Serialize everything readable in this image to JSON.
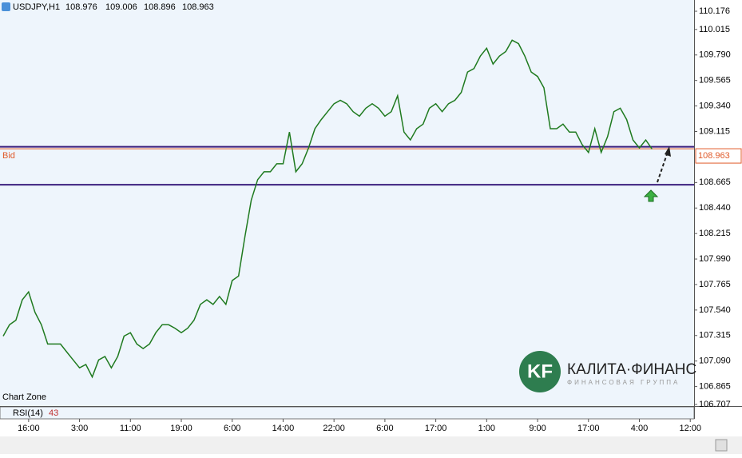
{
  "chart_data": {
    "type": "line",
    "header": {
      "symbol": "USDJPY,H1",
      "open": 108.976,
      "high": 109.006,
      "low": 108.896,
      "close": 108.963
    },
    "watermark": "Chart Zone",
    "series": [
      {
        "name": "USDJPY,H1",
        "color": "#1f7a1f",
        "values": [
          107.31,
          107.41,
          107.45,
          107.63,
          107.7,
          107.52,
          107.41,
          107.24,
          107.24,
          107.24,
          107.17,
          107.1,
          107.03,
          107.06,
          106.95,
          107.1,
          107.13,
          107.03,
          107.13,
          107.31,
          107.34,
          107.24,
          107.2,
          107.24,
          107.34,
          107.41,
          107.41,
          107.38,
          107.34,
          107.38,
          107.45,
          107.59,
          107.63,
          107.59,
          107.66,
          107.59,
          107.8,
          107.84,
          108.19,
          108.51,
          108.69,
          108.76,
          108.76,
          108.83,
          108.83,
          109.11,
          108.76,
          108.83,
          108.97,
          109.14,
          109.22,
          109.29,
          109.36,
          109.39,
          109.36,
          109.29,
          109.25,
          109.32,
          109.36,
          109.32,
          109.25,
          109.29,
          109.43,
          109.11,
          109.04,
          109.14,
          109.18,
          109.32,
          109.36,
          109.29,
          109.36,
          109.39,
          109.46,
          109.64,
          109.67,
          109.78,
          109.85,
          109.71,
          109.78,
          109.82,
          109.92,
          109.89,
          109.78,
          109.64,
          109.6,
          109.5,
          109.14,
          109.14,
          109.18,
          109.11,
          109.11,
          109.0,
          108.93,
          109.14,
          108.93,
          109.07,
          109.29,
          109.32,
          109.22,
          109.04,
          108.97,
          109.04,
          108.96
        ]
      }
    ],
    "levels": [
      108.98,
      108.645
    ],
    "level_color": "#3b1f7e",
    "bid": {
      "label": "Bid",
      "value": 108.963,
      "color": "#e05a2a"
    },
    "xlim": [
      -0.5,
      108.6
    ],
    "xticks": [
      {
        "value": 4,
        "label": "16:00"
      },
      {
        "value": 12,
        "label": "3:00"
      },
      {
        "value": 20,
        "label": "11:00"
      },
      {
        "value": 28,
        "label": "19:00"
      },
      {
        "value": 36,
        "label": "6:00"
      },
      {
        "value": 44,
        "label": "14:00"
      },
      {
        "value": 52,
        "label": "22:00"
      },
      {
        "value": 60,
        "label": "6:00"
      },
      {
        "value": 68,
        "label": "17:00"
      },
      {
        "value": 76,
        "label": "1:00"
      },
      {
        "value": 84,
        "label": "9:00"
      },
      {
        "value": 92,
        "label": "17:00"
      },
      {
        "value": 100,
        "label": "4:00"
      },
      {
        "value": 108,
        "label": "12:00"
      }
    ],
    "ylim": [
      106.693,
      110.275
    ],
    "yticks": [
      110.176,
      110.015,
      {
        "value": 109.79,
        "label": "109.790"
      },
      109.565,
      {
        "value": 109.34,
        "label": "109.340"
      },
      109.115,
      108.665,
      {
        "value": 108.44,
        "label": "108.440"
      },
      108.215,
      {
        "value": 107.99,
        "label": "107.990"
      },
      107.765,
      {
        "value": 107.54,
        "label": "107.540"
      },
      107.315,
      {
        "value": 107.09,
        "label": "107.090"
      },
      106.865,
      106.707
    ],
    "rsi": {
      "label": "RSI(14)",
      "value": 43
    },
    "logo": {
      "mark": "KF",
      "name": "КАЛИТА·ФИНАНС",
      "tagline": "ФИНАНСОВАЯ ГРУППА"
    }
  }
}
